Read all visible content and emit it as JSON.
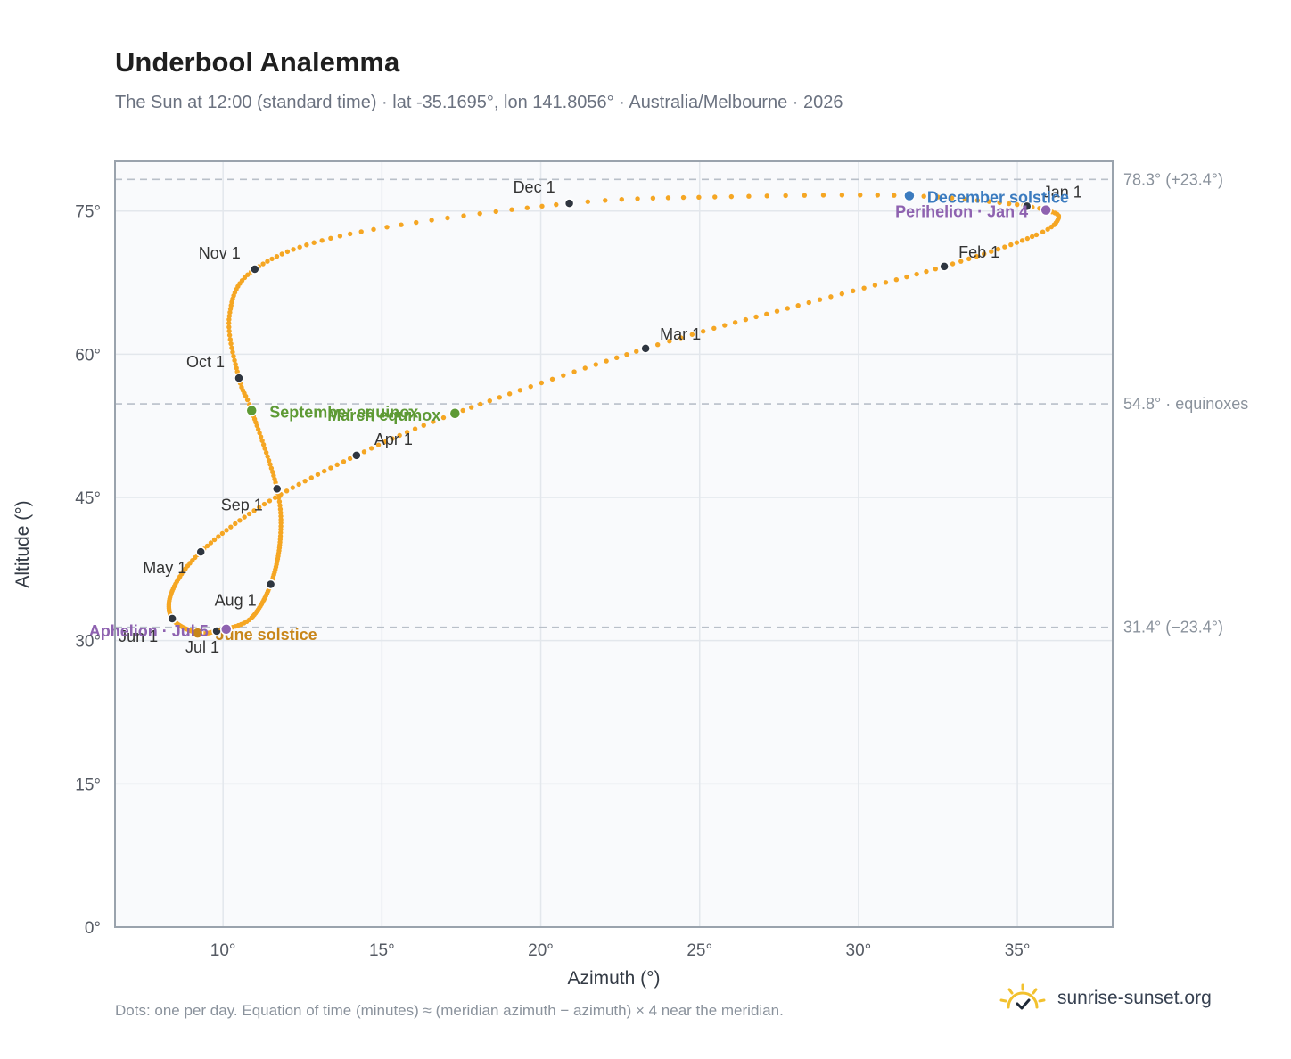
{
  "header": {
    "title": "Underbool Analemma",
    "subtitle": "The Sun at 12:00 (standard time) · lat -35.1695°, lon 141.8056° · Australia/Melbourne · 2026"
  },
  "footer": {
    "note": "Dots: one per day. Equation of time (minutes) ≈ (meridian azimuth − azimuth) × 4 near the meridian.",
    "brand": "sunrise-sunset.org",
    "brand_icon": "sun-logo-icon"
  },
  "colors": {
    "analemma": "#f5a623",
    "month_marker": "#2f3640",
    "december_solstice": "#3b7bbf",
    "june_solstice": "#c8861a",
    "equinox": "#5e9a35",
    "perihelion_aphelion": "#8e62b0",
    "reference_line": "#b9c0c9",
    "plot_background": "#f9fafc",
    "grid": "#e3e7ec",
    "axis_frame": "#9aa3ad"
  },
  "chart_data": {
    "type": "scatter",
    "title": "Underbool Analemma",
    "xlabel": "Azimuth (°)",
    "ylabel": "Altitude (°)",
    "xlim": [
      6.6,
      38.0
    ],
    "ylim": [
      0,
      80.2
    ],
    "x_ticks": [
      10,
      15,
      20,
      25,
      30,
      35
    ],
    "x_tick_labels": [
      "10°",
      "15°",
      "20°",
      "25°",
      "30°",
      "35°"
    ],
    "y_ticks": [
      0,
      15,
      30,
      45,
      60,
      75
    ],
    "y_tick_labels": [
      "0°",
      "15°",
      "30°",
      "45°",
      "60°",
      "75°"
    ],
    "grid": true,
    "legend": "none",
    "reference_lines": [
      {
        "altitude": 78.3,
        "label": "78.3° (+23.4°)"
      },
      {
        "altitude": 54.8,
        "label": "54.8° · equinoxes"
      },
      {
        "altitude": 31.4,
        "label": "31.4° (−23.4°)"
      }
    ],
    "daily_path": {
      "name": "",
      "points": [
        {
          "day": 1,
          "az": 35.3,
          "alt": 75.5
        },
        {
          "day": 4,
          "az": 35.9,
          "alt": 75.1
        },
        {
          "day": 10,
          "az": 36.3,
          "alt": 74.3
        },
        {
          "day": 18,
          "az": 35.6,
          "alt": 72.5
        },
        {
          "day": 32,
          "az": 32.7,
          "alt": 69.2
        },
        {
          "day": 46,
          "az": 28.1,
          "alt": 65.1
        },
        {
          "day": 60,
          "az": 23.3,
          "alt": 60.6
        },
        {
          "day": 79,
          "az": 17.3,
          "alt": 53.8
        },
        {
          "day": 91,
          "az": 14.2,
          "alt": 49.4
        },
        {
          "day": 106,
          "az": 11.3,
          "alt": 44.3
        },
        {
          "day": 121,
          "az": 9.3,
          "alt": 39.3
        },
        {
          "day": 136,
          "az": 8.4,
          "alt": 35.2
        },
        {
          "day": 152,
          "az": 8.4,
          "alt": 32.3
        },
        {
          "day": 172,
          "az": 9.2,
          "alt": 30.8
        },
        {
          "day": 182,
          "az": 9.8,
          "alt": 31.0
        },
        {
          "day": 186,
          "az": 10.1,
          "alt": 31.2
        },
        {
          "day": 196,
          "az": 10.9,
          "alt": 32.4
        },
        {
          "day": 213,
          "az": 11.5,
          "alt": 35.9
        },
        {
          "day": 230,
          "az": 11.8,
          "alt": 40.6
        },
        {
          "day": 244,
          "az": 11.7,
          "alt": 45.9
        },
        {
          "day": 266,
          "az": 10.9,
          "alt": 54.1
        },
        {
          "day": 274,
          "az": 10.5,
          "alt": 57.5
        },
        {
          "day": 290,
          "az": 10.2,
          "alt": 64.0
        },
        {
          "day": 305,
          "az": 11.0,
          "alt": 68.9
        },
        {
          "day": 320,
          "az": 14.0,
          "alt": 72.6
        },
        {
          "day": 335,
          "az": 20.9,
          "alt": 75.8
        },
        {
          "day": 345,
          "az": 26.0,
          "alt": 76.5
        },
        {
          "day": 355,
          "az": 31.6,
          "alt": 76.6
        },
        {
          "day": 365,
          "az": 35.2,
          "alt": 75.6
        }
      ]
    },
    "month_markers": [
      {
        "label": "Jan 1",
        "az": 35.3,
        "alt": 75.5
      },
      {
        "label": "Feb 1",
        "az": 32.7,
        "alt": 69.2
      },
      {
        "label": "Mar 1",
        "az": 23.3,
        "alt": 60.6
      },
      {
        "label": "Apr 1",
        "az": 14.2,
        "alt": 49.4
      },
      {
        "label": "May 1",
        "az": 9.3,
        "alt": 39.3
      },
      {
        "label": "Jun 1",
        "az": 8.4,
        "alt": 32.3
      },
      {
        "label": "Jul 1",
        "az": 9.8,
        "alt": 31.0
      },
      {
        "label": "Aug 1",
        "az": 11.5,
        "alt": 35.9
      },
      {
        "label": "Sep 1",
        "az": 11.7,
        "alt": 45.9
      },
      {
        "label": "Oct 1",
        "az": 10.5,
        "alt": 57.5
      },
      {
        "label": "Nov 1",
        "az": 11.0,
        "alt": 68.9
      },
      {
        "label": "Dec 1",
        "az": 20.9,
        "alt": 75.8
      }
    ],
    "events": [
      {
        "label": "December solstice",
        "az": 31.6,
        "alt": 76.6,
        "color": "#3b7bbf"
      },
      {
        "label": "Perihelion · Jan 4",
        "az": 35.9,
        "alt": 75.1,
        "color": "#8e62b0"
      },
      {
        "label": "March equinox",
        "az": 17.3,
        "alt": 53.8,
        "color": "#5e9a35"
      },
      {
        "label": "September equinox",
        "az": 10.9,
        "alt": 54.1,
        "color": "#5e9a35"
      },
      {
        "label": "June solstice",
        "az": 9.2,
        "alt": 30.8,
        "color": "#c8861a"
      },
      {
        "label": "Aphelion · Jul 5",
        "az": 10.1,
        "alt": 31.2,
        "color": "#8e62b0"
      }
    ]
  }
}
